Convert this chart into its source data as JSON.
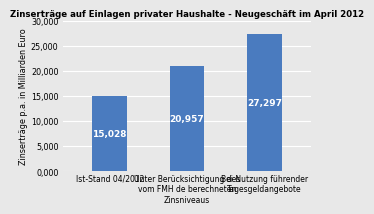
{
  "title": "Zinserträge auf Einlagen privater Haushalte - Neugeschäft im April 2012",
  "categories": [
    "Ist-Stand 04/2012",
    "Unter Berücksichtigung des\nvom FMH de berechneten\nZinsniveaus",
    "Bei Nutzung führender\nTagesgeldangebote"
  ],
  "values": [
    15028,
    20957,
    27297
  ],
  "bar_color": "#4a7bbf",
  "ylabel": "Zinserträge p.a. in Milliarden Euro",
  "ylim": [
    0,
    30000
  ],
  "yticks": [
    0,
    5000,
    10000,
    15000,
    20000,
    25000,
    30000
  ],
  "ytick_labels": [
    "0,000",
    "5,000",
    "10,000",
    "15,000",
    "20,000",
    "25,000",
    "30,000"
  ],
  "bar_labels": [
    "15,028",
    "20,957",
    "27,297"
  ],
  "bg_color": "#E8E8E8",
  "title_fontsize": 6.2,
  "bar_label_fontsize": 6.5,
  "ylabel_fontsize": 5.8,
  "xtick_fontsize": 5.5,
  "ytick_fontsize": 5.8,
  "grid_color": "#ffffff",
  "bar_width": 0.45
}
